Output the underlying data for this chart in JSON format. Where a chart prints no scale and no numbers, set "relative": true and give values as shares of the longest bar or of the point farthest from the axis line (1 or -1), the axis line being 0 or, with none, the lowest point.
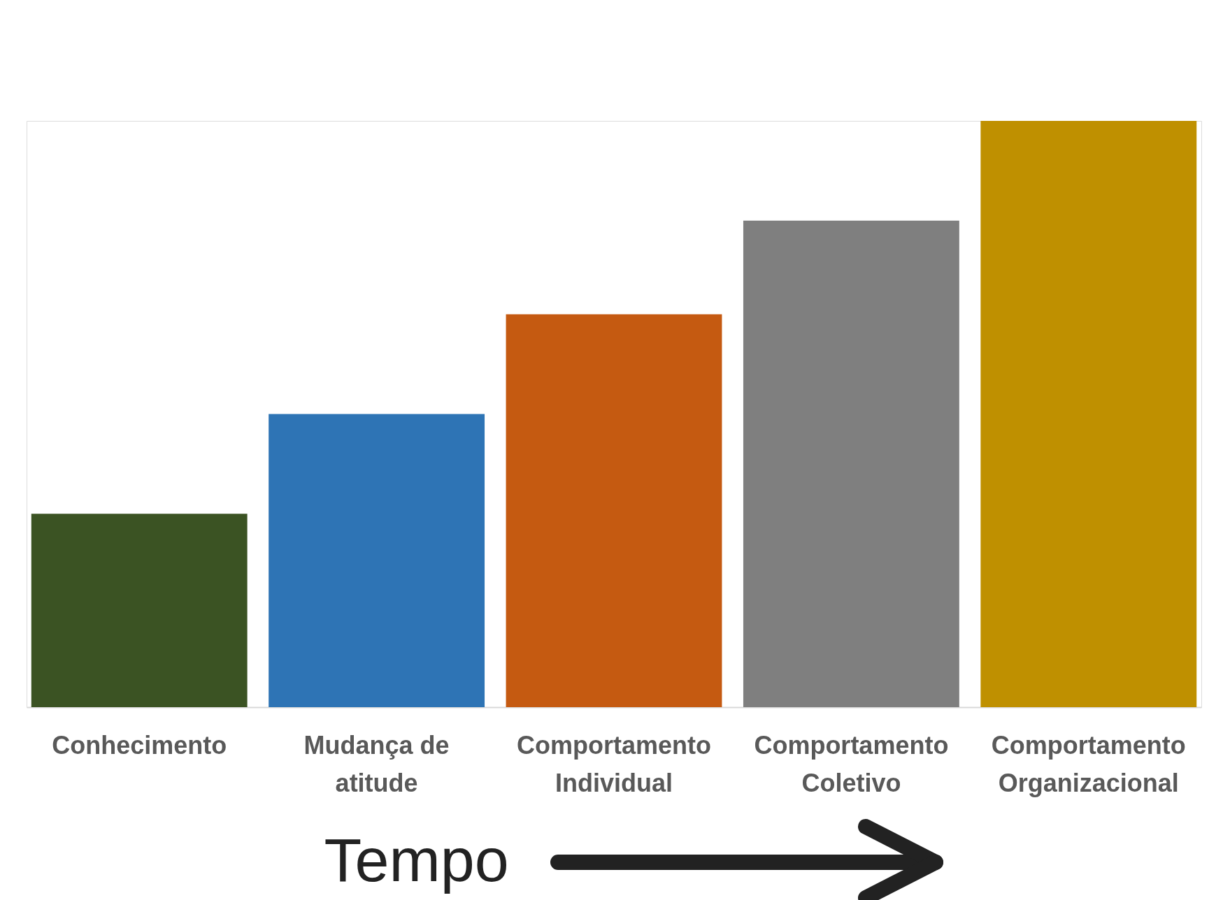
{
  "chart_data": {
    "type": "bar",
    "relative": true,
    "xlabel": "Tempo",
    "categories": [
      "Conhecimento",
      "Mudança de atitude",
      "Comportamento Individual",
      "Comportamento Coletivo",
      "Comportamento Organizacional"
    ],
    "values": [
      0.33,
      0.5,
      0.67,
      0.83,
      1
    ],
    "colors": [
      "#3b5323",
      "#2e74b5",
      "#c55a11",
      "#7f7f7f",
      "#bf9000"
    ],
    "grid": false
  }
}
